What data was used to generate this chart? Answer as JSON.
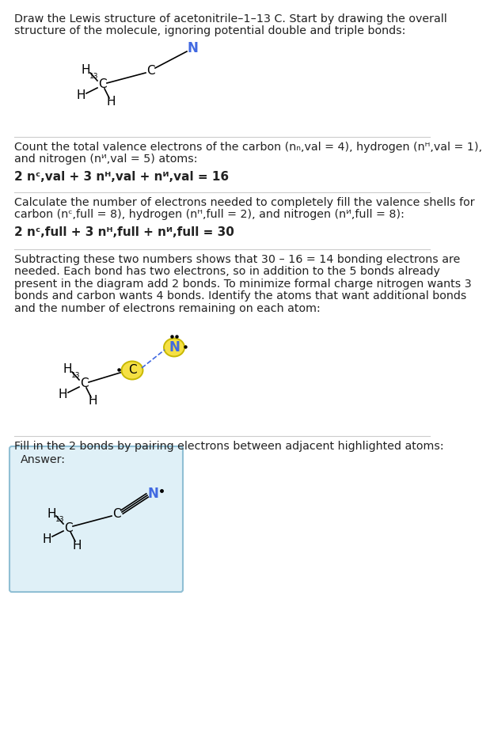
{
  "bg_color": "#ffffff",
  "text_color": "#222222",
  "blue_color": "#4169e1",
  "highlight_yellow": "#f5e044",
  "highlight_border": "#c8b800",
  "separator_color": "#cccccc",
  "answer_box_color": "#dff0f7",
  "answer_box_border": "#90bfd4",
  "section1_lines": [
    "Draw the Lewis structure of acetonitrile–1–13 C. Start by drawing the overall",
    "structure of the molecule, ignoring potential double and triple bonds:"
  ],
  "section2_lines": [
    "Count the total valence electrons of the carbon (nₙ,val = 4), hydrogen (nᴴ,val = 1),",
    "and nitrogen (nᴻ,val = 5) atoms:"
  ],
  "section2_formula": "2 nᶜ,val + 3 nᴴ,val + nᴻ,val = 16",
  "section3_lines": [
    "Calculate the number of electrons needed to completely fill the valence shells for",
    "carbon (nᶜ,full = 8), hydrogen (nᴴ,full = 2), and nitrogen (nᴻ,full = 8):"
  ],
  "section3_formula": "2 nᶜ,full + 3 nᴴ,full + nᴻ,full = 30",
  "section4_lines": [
    "Subtracting these two numbers shows that 30 – 16 = 14 bonding electrons are",
    "needed. Each bond has two electrons, so in addition to the 5 bonds already",
    "present in the diagram add 2 bonds. To minimize formal charge nitrogen wants 3",
    "bonds and carbon wants 4 bonds. Identify the atoms that want additional bonds",
    "and the number of electrons remaining on each atom:"
  ],
  "section5_line": "Fill in the 2 bonds by pairing electrons between adjacent highlighted atoms:",
  "answer_label": "Answer:"
}
